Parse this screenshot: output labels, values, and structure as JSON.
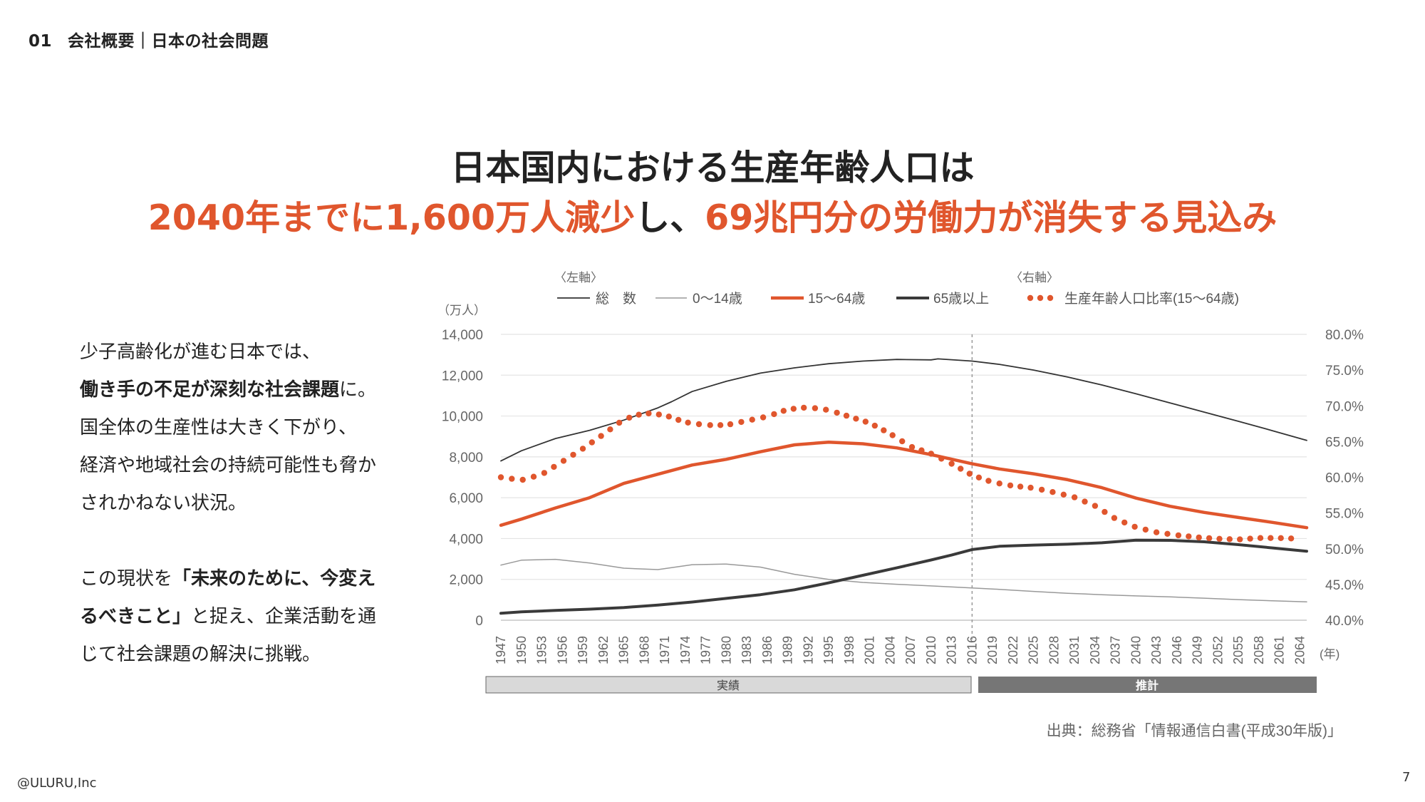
{
  "header": {
    "number": "01",
    "label": "会社概要｜日本の社会問題"
  },
  "headline": {
    "line1": "日本国内における生産年齢人口は",
    "line2_a": "2040年までに1,600万人減少",
    "line2_b": "し、",
    "line2_c": "69兆円分の労働力が消失する見込み"
  },
  "body": {
    "p1_l1": "少子高齢化が進む日本では、",
    "p1_l2_bold": "働き手の不足が深刻な社会課題",
    "p1_l2_rest": "に。",
    "p1_l3": "国全体の生産性は大きく下がり、",
    "p1_l4": "経済や地域社会の持続可能性も脅か",
    "p1_l5": "されかねない状況。",
    "p2_l1_a": "この現状を",
    "p2_l1_bold": "「未来のために、今変え",
    "p2_l2_bold": "るべきこと」",
    "p2_l2_rest": "と捉え、企業活動を通",
    "p2_l3": "じて社会課題の解決に挑戦。"
  },
  "chart_data": {
    "type": "line",
    "left_axis_group": "〈左軸〉",
    "right_axis_group": "〈右軸〉",
    "y_unit": "（万人）",
    "x_unit": "(年)",
    "ylim": [
      0,
      14000
    ],
    "yticks": [
      "14,000",
      "12,000",
      "10,000",
      "8,000",
      "6,000",
      "4,000",
      "2,000",
      "0"
    ],
    "ylim_right": [
      40,
      80
    ],
    "yticks_right": [
      "80.0%",
      "75.0%",
      "70.0%",
      "65.0%",
      "60.0%",
      "55.0%",
      "50.0%",
      "45.0%",
      "40.0%"
    ],
    "xlim": [
      1947,
      2065
    ],
    "xticks": [
      "1947",
      "1950",
      "1953",
      "1956",
      "1959",
      "1962",
      "1965",
      "1968",
      "1971",
      "1974",
      "1977",
      "1980",
      "1983",
      "1986",
      "1989",
      "1992",
      "1995",
      "1998",
      "2001",
      "2004",
      "2007",
      "2010",
      "2013",
      "2016",
      "2019",
      "2022",
      "2025",
      "2028",
      "2031",
      "2034",
      "2037",
      "2040",
      "2043",
      "2046",
      "2049",
      "2052",
      "2055",
      "2058",
      "2061",
      "2064"
    ],
    "divider_year": 2016,
    "periods": [
      {
        "label": "実績"
      },
      {
        "label": "推計"
      }
    ],
    "source": "出典：総務省「情報通信白書(平成30年版)」",
    "series": [
      {
        "name": "総　数",
        "axis": "left",
        "color": "#333333",
        "x": [
          1947,
          1950,
          1955,
          1960,
          1965,
          1970,
          1972,
          1975,
          1980,
          1985,
          1990,
          1995,
          2000,
          2005,
          2010,
          2011,
          2016,
          2020,
          2025,
          2030,
          2035,
          2040,
          2045,
          2050,
          2055,
          2060,
          2065
        ],
        "values": [
          7800,
          8300,
          8900,
          9300,
          9800,
          10400,
          10700,
          11200,
          11700,
          12100,
          12360,
          12560,
          12690,
          12770,
          12750,
          12800,
          12690,
          12530,
          12250,
          11910,
          11520,
          11090,
          10640,
          10190,
          9740,
          9280,
          8810
        ]
      },
      {
        "name": "0〜14歳",
        "axis": "left",
        "color": "#999999",
        "x": [
          1947,
          1950,
          1955,
          1960,
          1965,
          1970,
          1975,
          1980,
          1985,
          1990,
          1995,
          2000,
          2005,
          2010,
          2016,
          2020,
          2025,
          2030,
          2035,
          2040,
          2045,
          2050,
          2055,
          2060,
          2065
        ],
        "values": [
          2700,
          2940,
          2980,
          2800,
          2550,
          2480,
          2720,
          2750,
          2600,
          2250,
          2000,
          1850,
          1760,
          1680,
          1580,
          1510,
          1410,
          1320,
          1250,
          1190,
          1140,
          1080,
          1010,
          950,
          900
        ]
      },
      {
        "name": "15〜64歳",
        "axis": "left",
        "color": "#e0562d",
        "x": [
          1947,
          1950,
          1955,
          1960,
          1965,
          1970,
          1975,
          1980,
          1985,
          1990,
          1995,
          2000,
          2005,
          2010,
          2016,
          2020,
          2025,
          2030,
          2035,
          2040,
          2045,
          2050,
          2055,
          2060,
          2065
        ],
        "values": [
          4650,
          4950,
          5500,
          6000,
          6700,
          7150,
          7600,
          7880,
          8250,
          8590,
          8720,
          8640,
          8440,
          8110,
          7660,
          7410,
          7170,
          6880,
          6490,
          5980,
          5580,
          5280,
          5030,
          4790,
          4530
        ]
      },
      {
        "name": "65歳以上",
        "axis": "left",
        "color": "#3a3a3a",
        "x": [
          1947,
          1950,
          1955,
          1960,
          1965,
          1970,
          1975,
          1980,
          1985,
          1990,
          1995,
          2000,
          2005,
          2010,
          2013,
          2016,
          2020,
          2025,
          2030,
          2035,
          2040,
          2045,
          2050,
          2055,
          2060,
          2065
        ],
        "values": [
          340,
          410,
          480,
          540,
          620,
          740,
          890,
          1070,
          1250,
          1490,
          1830,
          2200,
          2570,
          2950,
          3190,
          3460,
          3620,
          3680,
          3720,
          3790,
          3920,
          3910,
          3840,
          3700,
          3540,
          3380
        ]
      },
      {
        "name": "生産年齢人口比率(15〜64歳)",
        "axis": "right",
        "color": "#e0562d",
        "style": "dotted",
        "x": [
          1947,
          1950,
          1953,
          1956,
          1959,
          1962,
          1965,
          1968,
          1971,
          1974,
          1977,
          1980,
          1983,
          1986,
          1989,
          1992,
          1995,
          1998,
          2001,
          2004,
          2007,
          2010,
          2013,
          2016,
          2019,
          2022,
          2025,
          2028,
          2031,
          2034,
          2037,
          2040,
          2043,
          2046,
          2049,
          2052,
          2055,
          2058,
          2061,
          2064
        ],
        "values": [
          60.0,
          59.6,
          60.4,
          62.2,
          64.0,
          66.0,
          68.1,
          69.0,
          68.7,
          67.7,
          67.3,
          67.3,
          67.9,
          68.5,
          69.5,
          69.8,
          69.4,
          68.5,
          67.6,
          66.1,
          64.3,
          63.3,
          61.9,
          60.3,
          59.3,
          58.8,
          58.5,
          57.9,
          57.2,
          56.0,
          54.2,
          53.0,
          52.3,
          51.9,
          51.6,
          51.4,
          51.3,
          51.5,
          51.5,
          51.4
        ]
      }
    ]
  },
  "footer": {
    "company": "@ULURU,Inc",
    "page": "7"
  }
}
